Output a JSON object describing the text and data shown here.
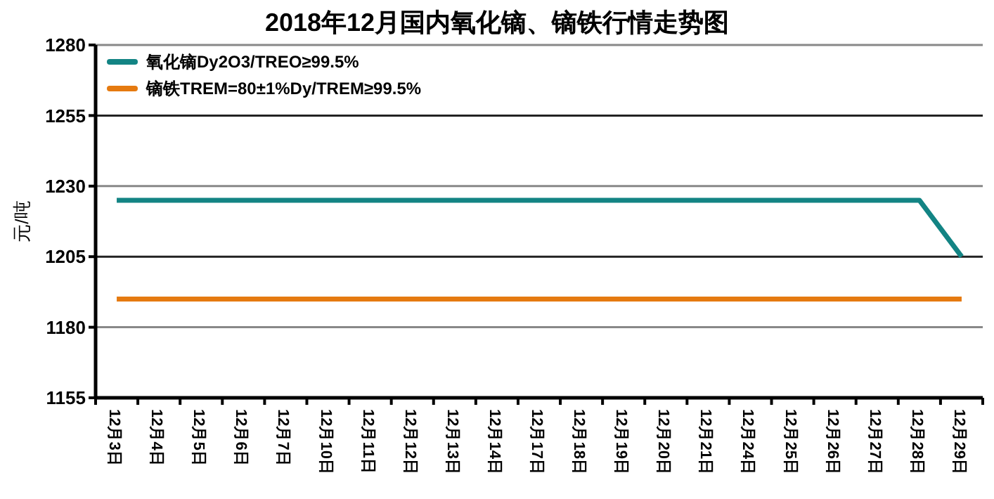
{
  "chart_data": {
    "type": "line",
    "title": "2018年12月国内氧化镝、镝铁行情走势图",
    "ylabel": "元/吨",
    "categories": [
      "12月3日",
      "12月4日",
      "12月5日",
      "12月6日",
      "12月7日",
      "12月10日",
      "12月11日",
      "12月12日",
      "12月13日",
      "12月14日",
      "12月17日",
      "12月18日",
      "12月19日",
      "12月20日",
      "12月21日",
      "12月24日",
      "12月25日",
      "12月26日",
      "12月27日",
      "12月28日",
      "12月29日"
    ],
    "series": [
      {
        "name": "氧化镝Dy2O3/TREO≥99.5%",
        "color": "#138484",
        "values": [
          1225,
          1225,
          1225,
          1225,
          1225,
          1225,
          1225,
          1225,
          1225,
          1225,
          1225,
          1225,
          1225,
          1225,
          1225,
          1225,
          1225,
          1225,
          1225,
          1225,
          1205
        ]
      },
      {
        "name": "镝铁TREM=80±1%Dy/TREM≥99.5%",
        "color": "#e57a10",
        "values": [
          1190,
          1190,
          1190,
          1190,
          1190,
          1190,
          1190,
          1190,
          1190,
          1190,
          1190,
          1190,
          1190,
          1190,
          1190,
          1190,
          1190,
          1190,
          1190,
          1190,
          1190
        ]
      }
    ],
    "ylim": [
      1155,
      1280
    ],
    "yticks": [
      1155,
      1180,
      1205,
      1230,
      1255,
      1280
    ],
    "grid": "y",
    "legend": "top left",
    "marker": "none",
    "line_style": "solid"
  }
}
